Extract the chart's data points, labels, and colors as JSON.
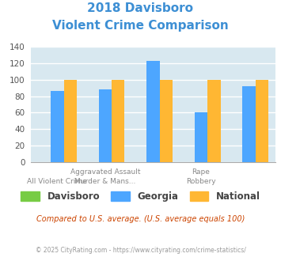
{
  "title_line1": "2018 Davisboro",
  "title_line2": "Violent Crime Comparison",
  "title_color": "#3d8fd4",
  "davisboro_values": [
    0,
    0,
    0,
    0,
    0
  ],
  "georgia_values": [
    86,
    88,
    123,
    60,
    92
  ],
  "national_values": [
    100,
    100,
    100,
    100,
    100
  ],
  "davisboro_color": "#77cc44",
  "georgia_color": "#4da6ff",
  "national_color": "#ffb733",
  "ylim": [
    0,
    140
  ],
  "yticks": [
    0,
    20,
    40,
    60,
    80,
    100,
    120,
    140
  ],
  "background_color": "#d8e8f0",
  "grid_color": "#ffffff",
  "top_labels": [
    "",
    "Aggravated Assault",
    "",
    "Rape",
    ""
  ],
  "bot_labels": [
    "All Violent Crime",
    "Murder & Mans...",
    "",
    "Robbery",
    ""
  ],
  "note": "Compared to U.S. average. (U.S. average equals 100)",
  "note_color": "#cc4400",
  "footer": "© 2025 CityRating.com - https://www.cityrating.com/crime-statistics/",
  "footer_color": "#999999",
  "legend_labels": [
    "Davisboro",
    "Georgia",
    "National"
  ]
}
